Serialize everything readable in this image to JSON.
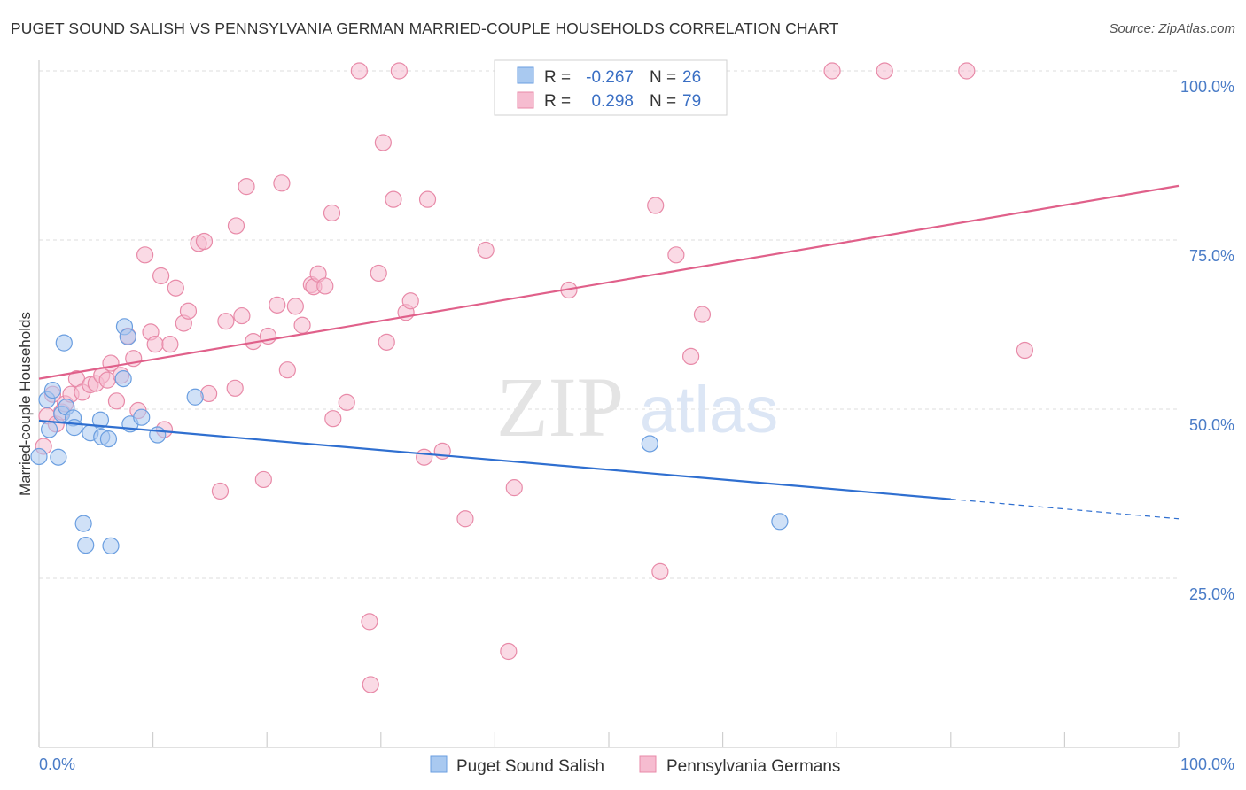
{
  "chart_data": {
    "type": "scatter",
    "title": "PUGET SOUND SALISH VS PENNSYLVANIA GERMAN MARRIED-COUPLE HOUSEHOLDS CORRELATION CHART",
    "source": "Source: ZipAtlas.com",
    "ylabel": "Married-couple Households",
    "xlim": [
      0,
      100
    ],
    "ylim": [
      0,
      100
    ],
    "x_tick_labels": [
      "0.0%",
      "100.0%"
    ],
    "y_ticks": [
      {
        "value": 25,
        "label": "25.0%"
      },
      {
        "value": 50,
        "label": "50.0%"
      },
      {
        "value": 75,
        "label": "75.0%"
      },
      {
        "value": 100,
        "label": "100.0%"
      }
    ],
    "watermark": {
      "zip": "ZIP",
      "atlas": "atlas"
    },
    "legend": {
      "r_label": "R =",
      "n_label": "N =",
      "entries": [
        {
          "r": "-0.267",
          "n": "26"
        },
        {
          "r": "0.298",
          "n": "79"
        }
      ]
    },
    "colors": {
      "blue_fill": "#a9c9f0",
      "blue_stroke": "#6a9ee0",
      "blue_line": "#2f6fd0",
      "pink_fill": "#f6bcd0",
      "pink_stroke": "#e88aa8",
      "pink_line": "#e0608a"
    },
    "series": [
      {
        "name": "Puget Sound Salish",
        "trend": {
          "x0": 0,
          "y0": 48.3,
          "x1": 80,
          "y1": 36.7,
          "dash_to_x": 100,
          "dash_to_y": 33.8
        },
        "points": [
          [
            0.0,
            43.0
          ],
          [
            0.7,
            51.4
          ],
          [
            0.9,
            47.0
          ],
          [
            1.2,
            52.8
          ],
          [
            1.7,
            42.9
          ],
          [
            2.0,
            49.3
          ],
          [
            2.2,
            59.8
          ],
          [
            2.4,
            50.3
          ],
          [
            3.0,
            48.7
          ],
          [
            3.1,
            47.3
          ],
          [
            3.9,
            33.1
          ],
          [
            4.1,
            29.9
          ],
          [
            4.5,
            46.5
          ],
          [
            5.4,
            48.4
          ],
          [
            5.5,
            45.9
          ],
          [
            6.1,
            45.6
          ],
          [
            6.3,
            29.8
          ],
          [
            7.4,
            54.5
          ],
          [
            7.5,
            62.2
          ],
          [
            7.8,
            60.7
          ],
          [
            8.0,
            47.8
          ],
          [
            9.0,
            48.8
          ],
          [
            10.4,
            46.2
          ],
          [
            13.7,
            51.8
          ],
          [
            53.6,
            44.9
          ],
          [
            65.0,
            33.4
          ]
        ]
      },
      {
        "name": "Pennsylvania Germans",
        "trend": {
          "x0": 0,
          "y0": 54.5,
          "x1": 100,
          "y1": 83.0
        },
        "points": [
          [
            0.4,
            44.5
          ],
          [
            0.7,
            49.0
          ],
          [
            1.5,
            47.8
          ],
          [
            2.0,
            49.6
          ],
          [
            2.3,
            50.8
          ],
          [
            2.8,
            52.2
          ],
          [
            3.3,
            54.5
          ],
          [
            3.8,
            52.5
          ],
          [
            4.5,
            53.6
          ],
          [
            5.0,
            53.8
          ],
          [
            5.5,
            55.0
          ],
          [
            6.0,
            54.3
          ],
          [
            6.3,
            56.8
          ],
          [
            7.2,
            55.0
          ],
          [
            6.8,
            51.2
          ],
          [
            7.8,
            60.8
          ],
          [
            8.3,
            57.5
          ],
          [
            8.7,
            49.8
          ],
          [
            9.3,
            72.8
          ],
          [
            9.8,
            61.4
          ],
          [
            10.2,
            59.6
          ],
          [
            10.7,
            69.7
          ],
          [
            11.0,
            47.0
          ],
          [
            11.5,
            59.6
          ],
          [
            12.0,
            67.9
          ],
          [
            12.7,
            62.7
          ],
          [
            13.1,
            64.5
          ],
          [
            14.0,
            74.5
          ],
          [
            14.5,
            74.8
          ],
          [
            14.9,
            52.3
          ],
          [
            15.9,
            37.9
          ],
          [
            16.4,
            63.0
          ],
          [
            17.2,
            53.1
          ],
          [
            17.3,
            77.1
          ],
          [
            17.8,
            63.8
          ],
          [
            18.2,
            82.9
          ],
          [
            18.8,
            60.0
          ],
          [
            19.7,
            39.6
          ],
          [
            20.1,
            60.8
          ],
          [
            20.9,
            65.4
          ],
          [
            21.3,
            83.4
          ],
          [
            21.8,
            55.8
          ],
          [
            22.5,
            65.2
          ],
          [
            23.1,
            62.4
          ],
          [
            23.9,
            68.4
          ],
          [
            24.1,
            68.1
          ],
          [
            24.5,
            70.0
          ],
          [
            25.1,
            68.2
          ],
          [
            25.7,
            79.0
          ],
          [
            25.8,
            48.6
          ],
          [
            27.0,
            51.0
          ],
          [
            28.1,
            100.0
          ],
          [
            29.0,
            18.6
          ],
          [
            29.1,
            9.3
          ],
          [
            29.8,
            70.1
          ],
          [
            30.2,
            89.4
          ],
          [
            30.5,
            59.9
          ],
          [
            31.1,
            81.0
          ],
          [
            31.6,
            100.0
          ],
          [
            32.2,
            64.3
          ],
          [
            32.6,
            66.0
          ],
          [
            33.8,
            42.9
          ],
          [
            34.1,
            81.0
          ],
          [
            35.4,
            43.8
          ],
          [
            37.4,
            33.8
          ],
          [
            39.2,
            73.5
          ],
          [
            41.2,
            14.2
          ],
          [
            41.7,
            38.4
          ],
          [
            46.5,
            67.6
          ],
          [
            54.1,
            80.1
          ],
          [
            54.5,
            26.0
          ],
          [
            55.9,
            72.8
          ],
          [
            57.2,
            57.8
          ],
          [
            58.2,
            64.0
          ],
          [
            69.6,
            100.0
          ],
          [
            74.2,
            100.0
          ],
          [
            81.4,
            100.0
          ],
          [
            86.5,
            58.7
          ],
          [
            1.2,
            52.2
          ]
        ]
      }
    ]
  }
}
